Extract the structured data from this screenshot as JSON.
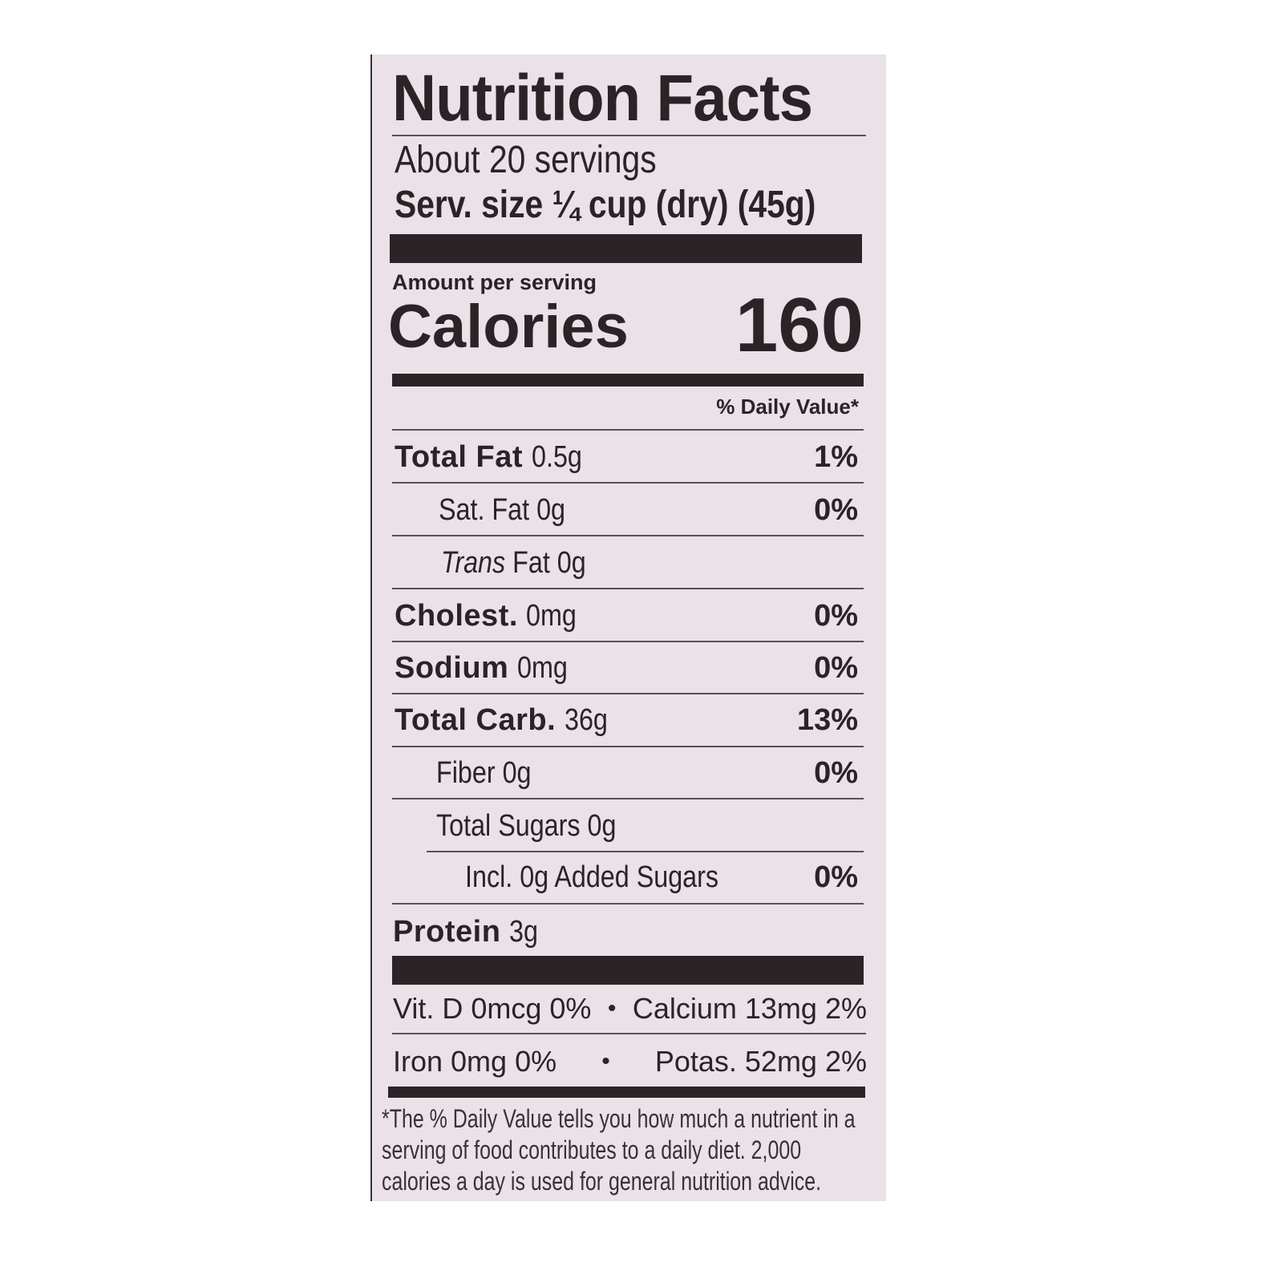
{
  "label": {
    "title": "Nutrition Facts",
    "servings": "About 20 servings",
    "serving_size": "Serv. size ¼ cup (dry) (45g)",
    "amount_per_serving": "Amount per serving",
    "calories_label": "Calories",
    "calories_value": "160",
    "daily_value_header": "% Daily Value*",
    "nutrients": [
      {
        "name": "Total Fat",
        "amount": "0.5g",
        "dv": "1%"
      },
      {
        "name": "Sat. Fat 0g",
        "amount": "",
        "dv": "0%"
      },
      {
        "name_italic": "Trans",
        "name": " Fat 0g",
        "dv": ""
      },
      {
        "name": "Cholest.",
        "amount": "0mg",
        "dv": "0%"
      },
      {
        "name": "Sodium",
        "amount": "0mg",
        "dv": "0%"
      },
      {
        "name": "Total Carb.",
        "amount": "36g",
        "dv": "13%"
      },
      {
        "name": "Fiber 0g",
        "amount": "",
        "dv": "0%"
      },
      {
        "name": "Total Sugars 0g",
        "amount": "",
        "dv": ""
      },
      {
        "name": "Incl. 0g Added Sugars",
        "amount": "",
        "dv": "0%"
      },
      {
        "name": "Protein",
        "amount": "3g",
        "dv": ""
      }
    ],
    "micros": [
      {
        "left": "Vit. D 0mcg 0%",
        "sep": "•",
        "right": "Calcium 13mg 2%"
      },
      {
        "left": "Iron 0mg 0%",
        "sep": "•",
        "right": "Potas. 52mg 2%"
      }
    ],
    "footnote": [
      "*The % Daily Value tells you how much a nutrient in a",
      "serving of food contributes to a daily diet. 2,000",
      "calories a day is used for general nutrition advice."
    ],
    "colors": {
      "background": "#ebe1e9",
      "ink": "#2b2326"
    }
  }
}
